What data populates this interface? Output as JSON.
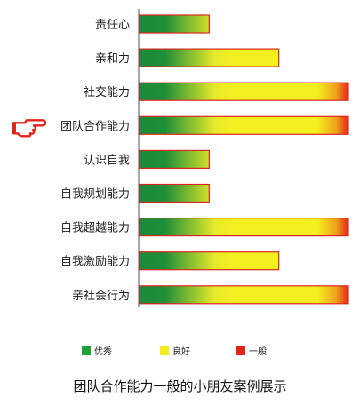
{
  "chart_data": {
    "type": "bar",
    "orientation": "horizontal",
    "categories": [
      "责任心",
      "亲和力",
      "社交能力",
      "团队合作能力",
      "认识自我",
      "自我规划能力",
      "自我超越能力",
      "自我激励能力",
      "亲社会行为"
    ],
    "values": [
      2,
      4,
      6,
      6,
      2,
      2,
      6,
      4,
      6
    ],
    "xlim": [
      0,
      6
    ],
    "grid": false,
    "highlighted_category": "团队合作能力",
    "highlight_icon": "pointing-hand-icon",
    "legend": {
      "placement": "bottom",
      "items": [
        {
          "label": "优秀",
          "color": "#1fa235"
        },
        {
          "label": "良好",
          "color": "#f2ee1c"
        },
        {
          "label": "一般",
          "color": "#e4231b"
        }
      ]
    },
    "gradient_colors": [
      "#1b8a3a",
      "#f4ef1e",
      "#e4231b"
    ],
    "bar_border_color": "#d8281e"
  },
  "caption": "团队合作能力一般的小朋友案例展示"
}
